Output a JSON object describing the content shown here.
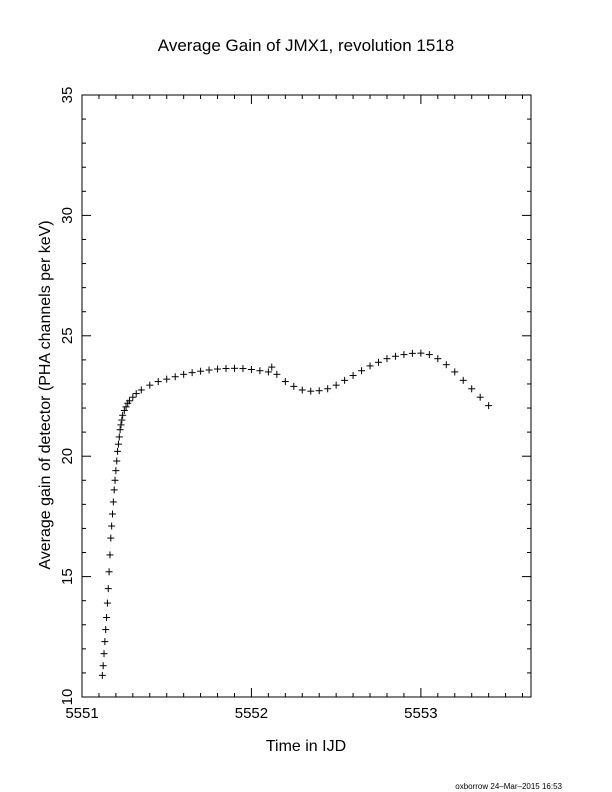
{
  "chart_data": {
    "type": "scatter",
    "title": "Average Gain of JMX1, revolution 1518",
    "xlabel": "Time in IJD",
    "ylabel": "Average gain of detector (PHA channels per keV)",
    "xlim": [
      5551.0,
      5553.65
    ],
    "ylim": [
      10,
      35
    ],
    "xticks": [
      5551,
      5552,
      5553
    ],
    "yticks": [
      10,
      15,
      20,
      25,
      30,
      35
    ],
    "marker": "+",
    "grid": false,
    "series": [
      {
        "points": [
          [
            5551.12,
            10.9
          ],
          [
            5551.125,
            11.3
          ],
          [
            5551.13,
            11.8
          ],
          [
            5551.135,
            12.3
          ],
          [
            5551.14,
            12.8
          ],
          [
            5551.145,
            13.3
          ],
          [
            5551.15,
            13.9
          ],
          [
            5551.155,
            14.5
          ],
          [
            5551.16,
            15.2
          ],
          [
            5551.165,
            15.9
          ],
          [
            5551.17,
            16.6
          ],
          [
            5551.175,
            17.1
          ],
          [
            5551.18,
            17.6
          ],
          [
            5551.185,
            18.1
          ],
          [
            5551.19,
            18.6
          ],
          [
            5551.195,
            19.0
          ],
          [
            5551.2,
            19.4
          ],
          [
            5551.205,
            19.8
          ],
          [
            5551.21,
            20.2
          ],
          [
            5551.215,
            20.5
          ],
          [
            5551.22,
            20.8
          ],
          [
            5551.225,
            21.1
          ],
          [
            5551.23,
            21.3
          ],
          [
            5551.235,
            21.5
          ],
          [
            5551.24,
            21.7
          ],
          [
            5551.25,
            21.9
          ],
          [
            5551.26,
            22.05
          ],
          [
            5551.27,
            22.2
          ],
          [
            5551.28,
            22.3
          ],
          [
            5551.3,
            22.45
          ],
          [
            5551.32,
            22.6
          ],
          [
            5551.35,
            22.75
          ],
          [
            5551.4,
            22.95
          ],
          [
            5551.45,
            23.1
          ],
          [
            5551.5,
            23.2
          ],
          [
            5551.55,
            23.3
          ],
          [
            5551.6,
            23.4
          ],
          [
            5551.65,
            23.47
          ],
          [
            5551.7,
            23.53
          ],
          [
            5551.75,
            23.58
          ],
          [
            5551.8,
            23.62
          ],
          [
            5551.85,
            23.64
          ],
          [
            5551.9,
            23.65
          ],
          [
            5551.95,
            23.64
          ],
          [
            5552.0,
            23.6
          ],
          [
            5552.05,
            23.55
          ],
          [
            5552.1,
            23.5
          ],
          [
            5552.12,
            23.7
          ],
          [
            5552.15,
            23.4
          ],
          [
            5552.2,
            23.1
          ],
          [
            5552.25,
            22.9
          ],
          [
            5552.3,
            22.75
          ],
          [
            5552.35,
            22.7
          ],
          [
            5552.4,
            22.72
          ],
          [
            5552.45,
            22.8
          ],
          [
            5552.5,
            22.95
          ],
          [
            5552.55,
            23.15
          ],
          [
            5552.6,
            23.35
          ],
          [
            5552.65,
            23.55
          ],
          [
            5552.7,
            23.75
          ],
          [
            5552.75,
            23.9
          ],
          [
            5552.8,
            24.05
          ],
          [
            5552.85,
            24.15
          ],
          [
            5552.9,
            24.22
          ],
          [
            5552.95,
            24.27
          ],
          [
            5553.0,
            24.28
          ],
          [
            5553.05,
            24.22
          ],
          [
            5553.1,
            24.05
          ],
          [
            5553.15,
            23.8
          ],
          [
            5553.2,
            23.5
          ],
          [
            5553.25,
            23.15
          ],
          [
            5553.3,
            22.8
          ],
          [
            5553.35,
            22.45
          ],
          [
            5553.4,
            22.1
          ]
        ]
      }
    ]
  },
  "footer": "oxborrow 24–Mar–2015 16:53"
}
